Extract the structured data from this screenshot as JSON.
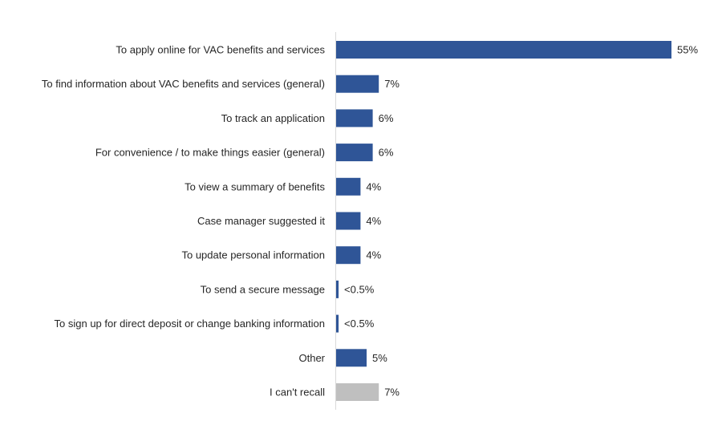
{
  "chart_data": {
    "type": "bar",
    "orientation": "horizontal",
    "title": "",
    "xlabel": "",
    "ylabel": "",
    "xlim": [
      0,
      55
    ],
    "grid": false,
    "legend": "none",
    "categories": [
      "To apply online for VAC benefits and services",
      "To find information about VAC benefits and services (general)",
      "To track an application",
      "For convenience / to make things easier (general)",
      "To view a summary of benefits",
      "Case manager suggested it",
      "To update personal information",
      "To send a secure message",
      "To sign up for direct deposit or change banking information",
      "Other",
      "I can't recall"
    ],
    "values": [
      55,
      7,
      6,
      6,
      4,
      4,
      4,
      0.4,
      0.4,
      5,
      7
    ],
    "data_labels": [
      "55%",
      "7%",
      "6%",
      "6%",
      "4%",
      "4%",
      "4%",
      "<0.5%",
      "<0.5%",
      "5%",
      "7%"
    ],
    "bar_colors": [
      "#2F5597",
      "#2F5597",
      "#2F5597",
      "#2F5597",
      "#2F5597",
      "#2F5597",
      "#2F5597",
      "#2F5597",
      "#2F5597",
      "#2F5597",
      "#BFBFBF"
    ],
    "axis_color": "#D9D9D9"
  }
}
